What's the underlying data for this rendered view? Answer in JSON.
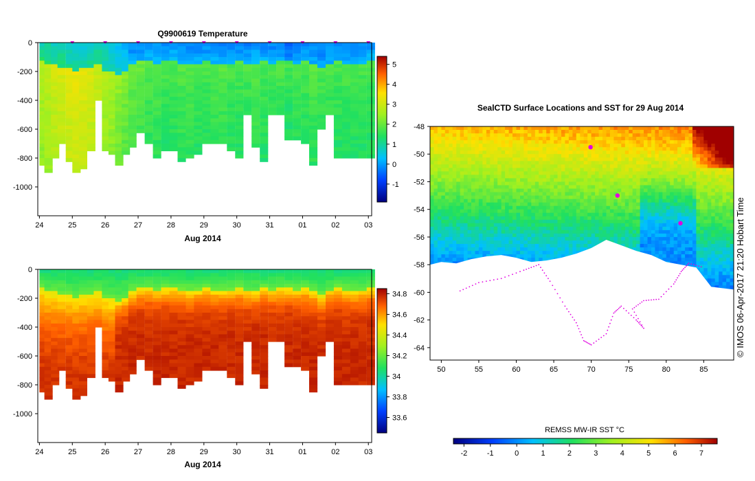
{
  "chart_data": [
    {
      "type": "heatmap",
      "title": "Q9900619  Temperature",
      "xlabel": "Aug 2014",
      "ylabel": "",
      "x_ticks": [
        "24",
        "25",
        "26",
        "27",
        "28",
        "29",
        "30",
        "31",
        "01",
        "02",
        "03"
      ],
      "y_ticks": [
        "0",
        "-200",
        "-400",
        "-600",
        "-800",
        "-1000"
      ],
      "ylim": [
        -1200,
        0
      ],
      "colorbar_ticks": [
        "5",
        "4",
        "3",
        "2",
        "1",
        "0",
        "-1"
      ],
      "colorbar_range": [
        -1.9,
        5.4
      ],
      "profile_days": [
        24.1,
        24.25,
        24.45,
        24.65,
        24.9,
        25.1,
        25.3,
        25.55,
        25.75,
        26.0,
        26.2,
        26.4,
        26.6,
        26.8,
        27.05,
        27.3,
        27.55,
        27.8,
        28.05,
        28.3,
        28.55,
        28.8,
        29.05,
        29.3,
        29.55,
        29.8,
        30.05,
        30.3,
        30.55,
        30.8,
        31.05,
        31.3,
        31.55,
        31.8,
        32.05,
        32.3,
        32.55,
        32.8,
        33.05,
        33.3,
        33.55,
        33.8,
        34.05
      ],
      "profile_max_depth": [
        850,
        900,
        800,
        700,
        820,
        880,
        870,
        750,
        380,
        750,
        760,
        840,
        760,
        720,
        620,
        700,
        800,
        750,
        740,
        820,
        800,
        760,
        700,
        700,
        680,
        740,
        800,
        500,
        720,
        820,
        500,
        500,
        660,
        660,
        700,
        850,
        600,
        500,
        800,
        800,
        800,
        800,
        800
      ],
      "profile_mixed_depth": [
        120,
        140,
        150,
        160,
        170,
        180,
        170,
        160,
        150,
        180,
        200,
        210,
        190,
        140,
        120,
        120,
        130,
        120,
        120,
        130,
        140,
        130,
        120,
        130,
        140,
        130,
        120,
        130,
        140,
        120,
        130,
        120,
        120,
        130,
        120,
        140,
        170,
        130,
        110,
        130,
        140,
        130,
        120
      ],
      "surface_temp": [
        0.9,
        0.9,
        0.8,
        0.8,
        0.7,
        0.6,
        0.6,
        0.7,
        0.8,
        0.6,
        0.4,
        0.3,
        0.2,
        -0.2,
        -0.2,
        -0.1,
        -0.1,
        -0.2,
        -0.1,
        -0.1,
        -0.2,
        -0.2,
        -0.2,
        -0.2,
        -0.2,
        -0.2,
        -0.2,
        -0.2,
        -0.1,
        -0.2,
        -0.2,
        -0.2,
        -0.5,
        -0.3,
        -0.2,
        -0.2,
        -0.3,
        -0.2,
        -0.2,
        -0.2,
        -0.2,
        -0.2,
        -0.1
      ],
      "deep_temp": [
        2.6,
        2.7,
        2.9,
        3.0,
        3.1,
        3.2,
        3.1,
        3.0,
        2.8,
        2.6,
        2.5,
        2.3,
        2.1,
        1.9,
        1.8,
        1.7,
        1.7,
        1.6,
        1.6,
        1.7,
        1.7,
        1.6,
        1.6,
        1.7,
        1.7,
        1.6,
        1.6,
        1.6,
        1.7,
        1.6,
        1.6,
        1.6,
        1.5,
        1.6,
        1.6,
        1.7,
        1.6,
        1.6,
        1.6,
        1.6,
        1.6,
        1.6,
        1.6
      ]
    },
    {
      "type": "heatmap",
      "title": "",
      "xlabel": "Aug 2014",
      "ylabel": "",
      "x_ticks": [
        "24",
        "25",
        "26",
        "27",
        "28",
        "29",
        "30",
        "31",
        "01",
        "02",
        "03"
      ],
      "y_ticks": [
        "0",
        "-200",
        "-400",
        "-600",
        "-800",
        "-1000"
      ],
      "ylim": [
        -1200,
        0
      ],
      "colorbar_ticks": [
        "34.8",
        "34.6",
        "34.4",
        "34.2",
        "34",
        "33.8",
        "33.6"
      ],
      "colorbar_range": [
        33.45,
        34.85
      ],
      "surface_value": 34.05,
      "deep_value": 34.78,
      "transition_value": 34.45
    },
    {
      "type": "heatmap",
      "title": "SealCTD Surface Locations and SST for 29 Aug 2014",
      "xlabel": "",
      "ylabel": "",
      "x_ticks": [
        "50",
        "55",
        "60",
        "65",
        "70",
        "75",
        "80",
        "85"
      ],
      "y_ticks": [
        "-48",
        "-50",
        "-52",
        "-54",
        "-56",
        "-58",
        "-60",
        "-62",
        "-64"
      ],
      "xlim": [
        48.5,
        89
      ],
      "ylim": [
        -64.9,
        -48
      ],
      "colorbar_label": "REMSS MW-IR SST °C",
      "colorbar_ticks": [
        "-2",
        "-1",
        "0",
        "1",
        "2",
        "3",
        "4",
        "5",
        "6",
        "7"
      ],
      "colorbar_range": [
        -2.4,
        7.6
      ],
      "ice_edge_lat": [
        -58.0,
        -57.8,
        -57.9,
        -57.6,
        -57.4,
        -57.3,
        -57.5,
        -57.8,
        -57.7,
        -57.5,
        -57.2,
        -56.8,
        -56.2,
        -56.6,
        -57.0,
        -57.3,
        -57.8,
        -58.0,
        -58.2,
        -59.6,
        -59.8
      ],
      "ice_edge_lon": [
        48.5,
        50,
        52,
        54,
        56,
        58,
        60,
        62,
        64,
        66,
        68,
        70,
        72,
        74,
        76,
        78,
        80,
        82,
        84,
        86,
        89
      ],
      "seal_tracks": [
        {
          "lon": 69.9,
          "lat": -49.5
        },
        {
          "lon": 73.5,
          "lat": -53.0
        },
        {
          "lon": 81.9,
          "lat": -55.0
        }
      ]
    }
  ],
  "footer_text": "© IMOS 06-Apr-2017 21:20 Hobart Time",
  "colors": {
    "track_marker": "#e000e0",
    "coast": "#e000e0",
    "frame": "#000000"
  }
}
